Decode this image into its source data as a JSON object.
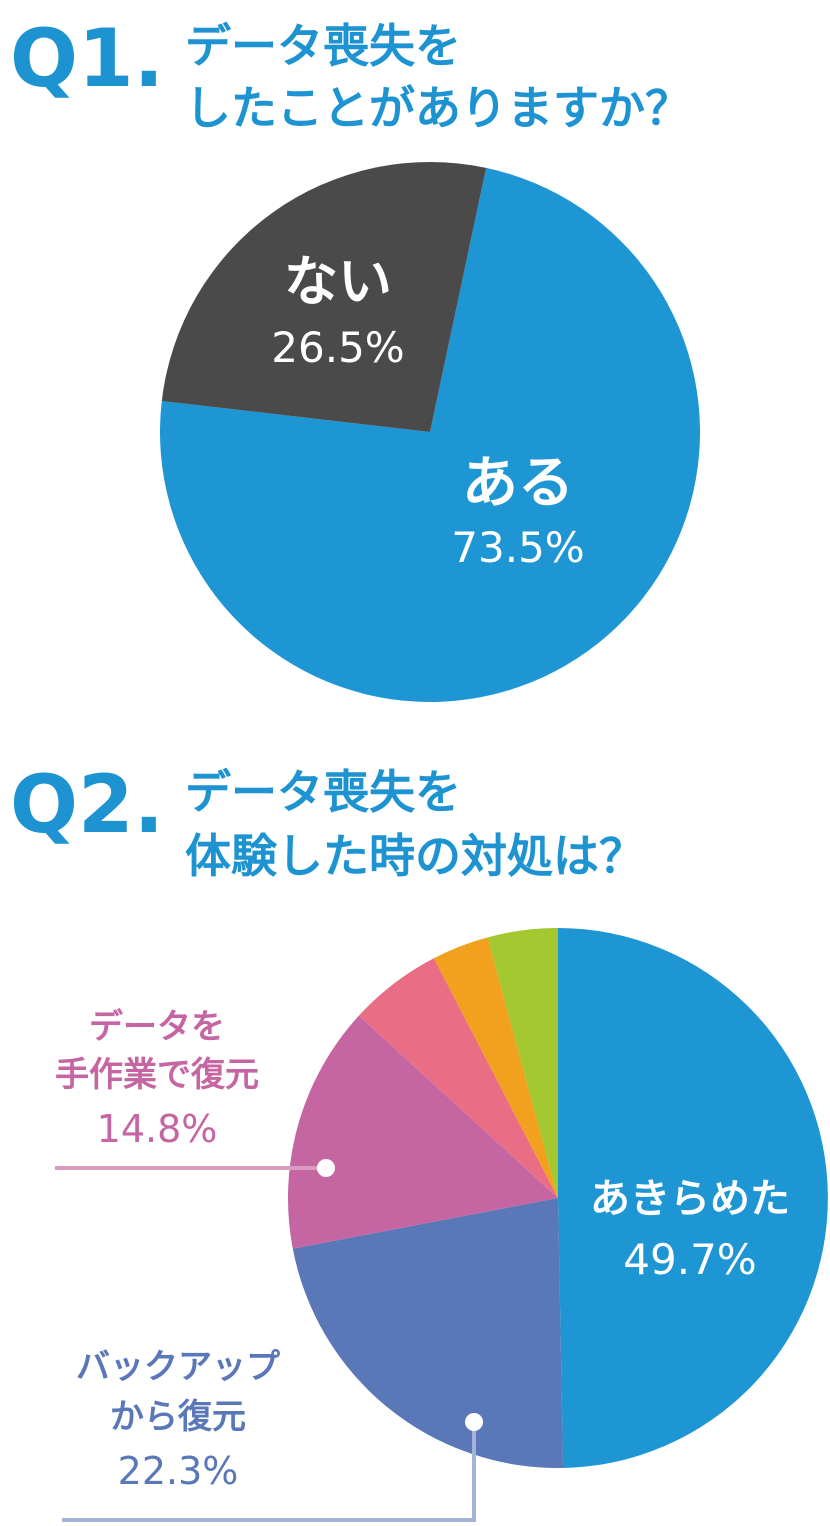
{
  "colors": {
    "heading": "#1d93d2",
    "white": "#ffffff"
  },
  "chart_data": [
    {
      "type": "pie",
      "question_number": "Q1.",
      "title_lines": [
        "データ喪失を",
        "したことがありますか？"
      ],
      "slices": [
        {
          "label": "ある",
          "value": 73.5,
          "value_text": "73.5%",
          "color": "#1e96d4"
        },
        {
          "label": "ない",
          "value": 26.5,
          "value_text": "26.5%",
          "color": "#4a4a4a"
        }
      ]
    },
    {
      "type": "pie",
      "question_number": "Q2.",
      "title_lines": [
        "データ喪失を",
        "体験した時の対処は？"
      ],
      "slices": [
        {
          "label_lines": [
            "あきらめた"
          ],
          "value": 49.7,
          "value_text": "49.7%",
          "color": "#1e96d4"
        },
        {
          "label_lines": [
            "バックアップ",
            "から復元"
          ],
          "value": 22.3,
          "value_text": "22.3%",
          "color": "#5a77b8"
        },
        {
          "label_lines": [
            "データを",
            "手作業で復元"
          ],
          "value": 14.8,
          "value_text": "14.8%",
          "color": "#c566a2"
        },
        {
          "value": 5.6,
          "color": "#e96d84"
        },
        {
          "value": 3.4,
          "color": "#f2a11f"
        },
        {
          "value": 4.2,
          "color": "#a3c830"
        }
      ]
    }
  ]
}
